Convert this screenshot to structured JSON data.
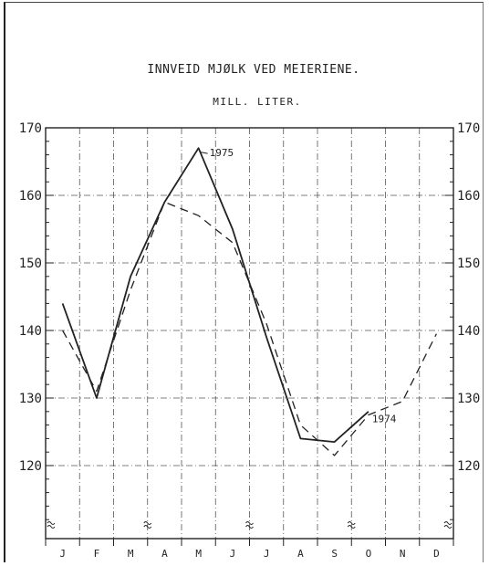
{
  "chart_data": {
    "type": "line",
    "title": "INNVEID MJØLK VED MEIERIENE.",
    "subtitle": "MILL. LITER.",
    "categories": [
      "J",
      "F",
      "M",
      "A",
      "M",
      "J",
      "J",
      "A",
      "S",
      "O",
      "N",
      "D"
    ],
    "ylim": [
      110,
      170
    ],
    "yticks": [
      120,
      130,
      140,
      150,
      160,
      170
    ],
    "grid": true,
    "series": [
      {
        "name": "1975",
        "style": "solid",
        "values": [
          144,
          130,
          148,
          159,
          167,
          155,
          139,
          124,
          123.5,
          128,
          null,
          null
        ]
      },
      {
        "name": "1974",
        "style": "dashed",
        "values": [
          140,
          131,
          146,
          159,
          157,
          153,
          141,
          126,
          121.5,
          127.5,
          129.5,
          139.5
        ]
      }
    ],
    "colors": {
      "ink": "#222222",
      "grid": "#555555"
    }
  }
}
